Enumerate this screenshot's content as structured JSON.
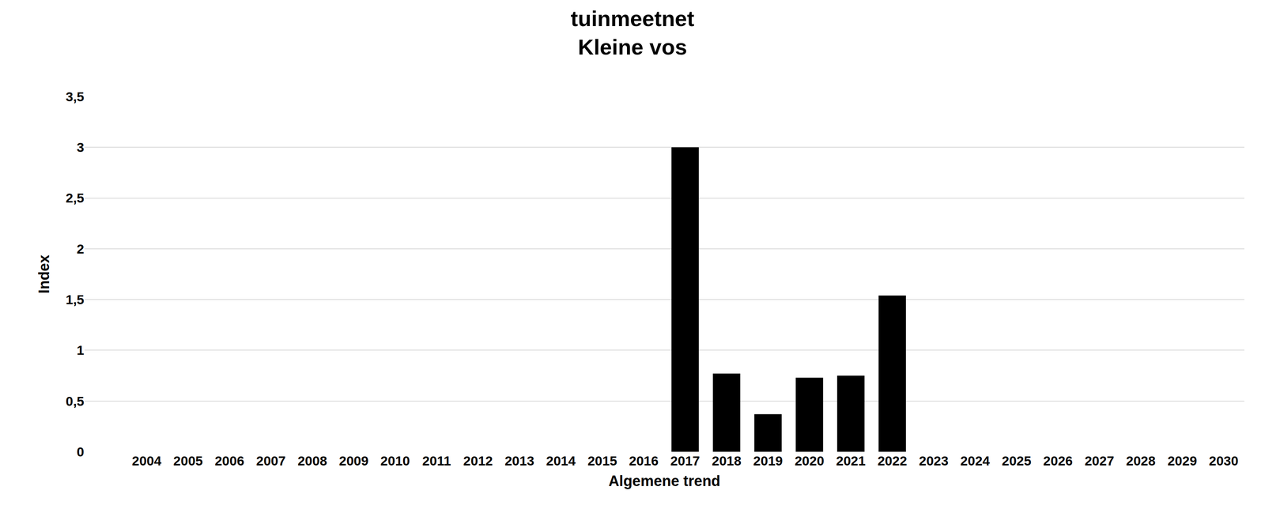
{
  "chart_data": {
    "type": "bar",
    "title": [
      "tuinmeetnet",
      "Kleine vos"
    ],
    "x_label": "Algemene trend",
    "y_label": "Index",
    "categories": [
      "2004",
      "2005",
      "2006",
      "2007",
      "2008",
      "2009",
      "2010",
      "2011",
      "2012",
      "2013",
      "2014",
      "2015",
      "2016",
      "2017",
      "2018",
      "2019",
      "2020",
      "2021",
      "2022",
      "2023",
      "2024",
      "2025",
      "2026",
      "2027",
      "2028",
      "2029",
      "2030"
    ],
    "values": [
      null,
      null,
      null,
      null,
      null,
      null,
      null,
      null,
      null,
      null,
      null,
      null,
      null,
      3.0,
      0.77,
      0.37,
      0.73,
      0.75,
      1.54,
      null,
      null,
      null,
      null,
      null,
      null,
      null,
      null
    ],
    "color": "#000000",
    "ylim": [
      0,
      3.5
    ],
    "yticks": [
      0,
      {
        "value": 0.5,
        "label": "0,5"
      },
      1,
      {
        "value": 1.5,
        "label": "1,5"
      },
      2,
      {
        "value": 2.5,
        "label": "2,5"
      },
      3,
      {
        "value": 3.5,
        "label": "3,5"
      }
    ],
    "grid": true
  }
}
